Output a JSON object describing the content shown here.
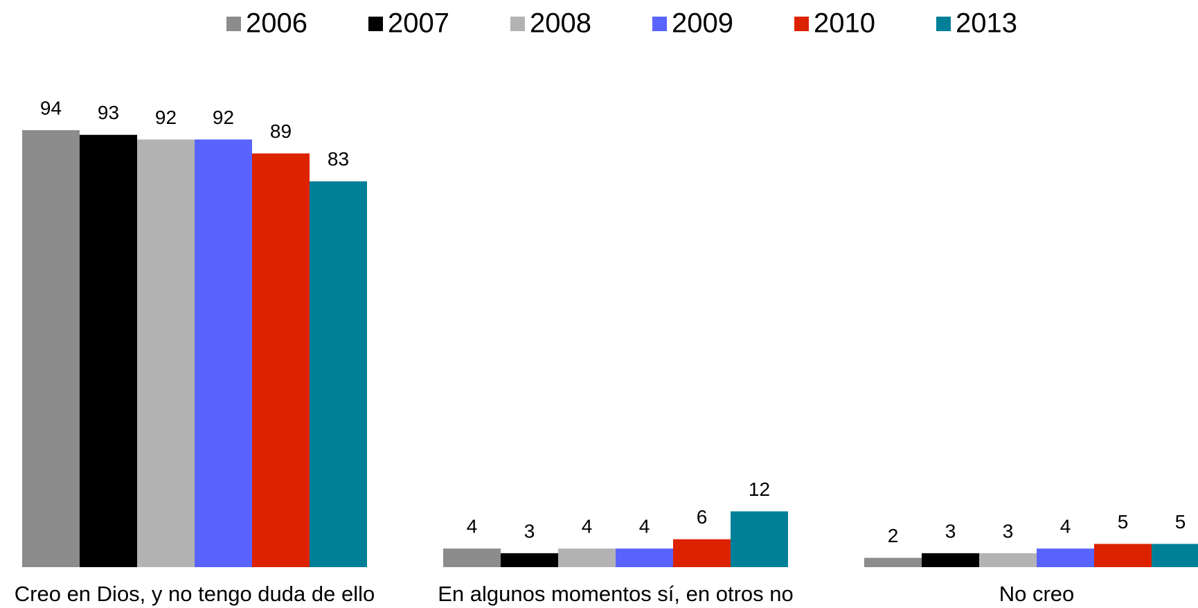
{
  "chart_data": {
    "type": "bar",
    "categories": [
      "Creo en Dios, y no tengo duda de ello",
      "En algunos momentos sí, en otros no",
      "No creo"
    ],
    "series": [
      {
        "name": "2006",
        "color": "#8c8c8c",
        "values": [
          94,
          4,
          2
        ]
      },
      {
        "name": "2007",
        "color": "#000000",
        "values": [
          93,
          3,
          3
        ]
      },
      {
        "name": "2008",
        "color": "#b3b3b3",
        "values": [
          92,
          4,
          3
        ]
      },
      {
        "name": "2009",
        "color": "#5964ff",
        "values": [
          92,
          4,
          4
        ]
      },
      {
        "name": "2010",
        "color": "#dd2200",
        "values": [
          89,
          6,
          5
        ]
      },
      {
        "name": "2013",
        "color": "#007f99",
        "values": [
          83,
          12,
          5
        ]
      }
    ],
    "legend": "top"
  }
}
